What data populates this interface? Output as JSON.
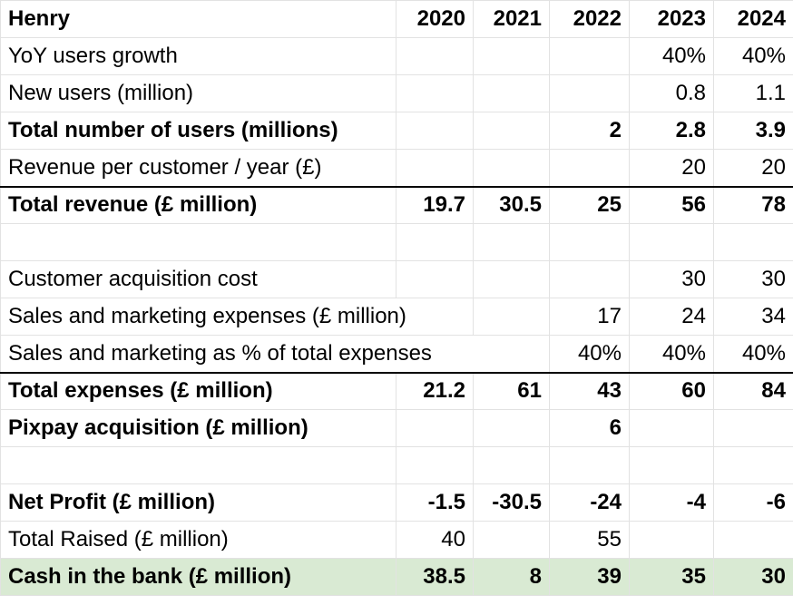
{
  "header": {
    "title": "Henry",
    "years": [
      "2020",
      "2021",
      "2022",
      "2023",
      "2024"
    ]
  },
  "rows": [
    {
      "label": "YoY users growth",
      "values": [
        "",
        "",
        "",
        "40%",
        "40%"
      ]
    },
    {
      "label": "New users (million)",
      "values": [
        "",
        "",
        "",
        "0.8",
        "1.1"
      ]
    },
    {
      "label": "Total number of users (millions)",
      "values": [
        "",
        "",
        "2",
        "2.8",
        "3.9"
      ]
    },
    {
      "label": "Revenue per customer / year (£)",
      "values": [
        "",
        "",
        "",
        "20",
        "20"
      ]
    },
    {
      "label": "Total revenue (£ million)",
      "values": [
        "19.7",
        "30.5",
        "25",
        "56",
        "78"
      ]
    },
    {
      "label": "",
      "values": [
        "",
        "",
        "",
        "",
        ""
      ]
    },
    {
      "label": "Customer acquisition cost",
      "values": [
        "",
        "",
        "",
        "30",
        "30"
      ]
    },
    {
      "label": "Sales and marketing expenses (£ million)",
      "values": [
        "",
        "",
        "17",
        "24",
        "34"
      ]
    },
    {
      "label": "Sales and marketing as % of total expenses",
      "values": [
        "",
        "",
        "40%",
        "40%",
        "40%"
      ]
    },
    {
      "label": "Total expenses (£ million)",
      "values": [
        "21.2",
        "61",
        "43",
        "60",
        "84"
      ]
    },
    {
      "label": "Pixpay acquisition (£ million)",
      "values": [
        "",
        "",
        "6",
        "",
        ""
      ]
    },
    {
      "label": "",
      "values": [
        "",
        "",
        "",
        "",
        ""
      ]
    },
    {
      "label": "Net Profit (£ million)",
      "values": [
        "-1.5",
        "-30.5",
        "-24",
        "-4",
        "-6"
      ]
    },
    {
      "label": "Total Raised (£ million)",
      "values": [
        "40",
        "",
        "55",
        "",
        ""
      ]
    },
    {
      "label": "Cash in the bank (£ million)",
      "values": [
        "38.5",
        "8",
        "39",
        "35",
        "30"
      ]
    }
  ],
  "colors": {
    "highlight_row": "#d9ead3",
    "grid_line": "#e2e2e2",
    "rule_line": "#000000"
  }
}
